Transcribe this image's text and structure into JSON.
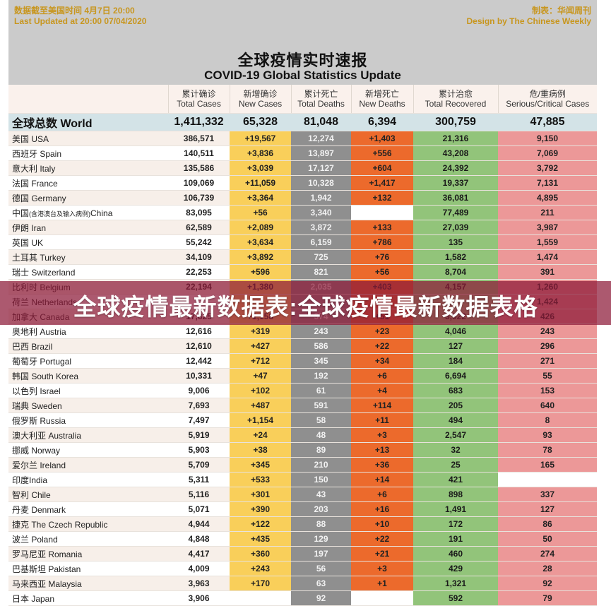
{
  "header": {
    "updated_cn": "数据截至美国时间 4月7日 20:00",
    "updated_en": "Last Updated at 20:00 07/04/2020",
    "credit_cn": "制表：华闻周刊",
    "credit_en": "Design by The Chinese Weekly",
    "title_cn": "全球疫情实时速报",
    "title_en": "COVID-19 Global Statistics Update"
  },
  "columns": [
    {
      "cn": "",
      "en": ""
    },
    {
      "cn": "累计确诊",
      "en": "Total Cases"
    },
    {
      "cn": "新增确诊",
      "en": "New Cases"
    },
    {
      "cn": "累计死亡",
      "en": "Total Deaths"
    },
    {
      "cn": "新增死亡",
      "en": "New Deaths"
    },
    {
      "cn": "累计治愈",
      "en": "Total Recovered"
    },
    {
      "cn": "危/重病例",
      "en": "Serious/Critical Cases"
    }
  ],
  "world": {
    "name": "全球总数 World",
    "total": "1,411,332",
    "new": "65,328",
    "deaths": "81,048",
    "new_deaths": "6,394",
    "recovered": "300,759",
    "serious": "47,885"
  },
  "rows": [
    {
      "name": "美国 USA",
      "total": "386,571",
      "new": "+19,567",
      "deaths": "12,274",
      "new_deaths": "+1,403",
      "recovered": "21,316",
      "serious": "9,150"
    },
    {
      "name": "西班牙 Spain",
      "total": "140,511",
      "new": "+3,836",
      "deaths": "13,897",
      "new_deaths": "+556",
      "recovered": "43,208",
      "serious": "7,069"
    },
    {
      "name": "意大利 Italy",
      "total": "135,586",
      "new": "+3,039",
      "deaths": "17,127",
      "new_deaths": "+604",
      "recovered": "24,392",
      "serious": "3,792"
    },
    {
      "name": "法国 France",
      "total": "109,069",
      "new": "+11,059",
      "deaths": "10,328",
      "new_deaths": "+1,417",
      "recovered": "19,337",
      "serious": "7,131"
    },
    {
      "name": "德国 Germany",
      "total": "106,739",
      "new": "+3,364",
      "deaths": "1,942",
      "new_deaths": "+132",
      "recovered": "36,081",
      "serious": "4,895"
    },
    {
      "name": "中国",
      "name_sub": "(含港澳台及输入病例)",
      "name_en": "China",
      "total": "83,095",
      "new": "+56",
      "deaths": "3,340",
      "new_deaths": "",
      "recovered": "77,489",
      "serious": "211"
    },
    {
      "name": "伊朗 Iran",
      "total": "62,589",
      "new": "+2,089",
      "deaths": "3,872",
      "new_deaths": "+133",
      "recovered": "27,039",
      "serious": "3,987"
    },
    {
      "name": "英国 UK",
      "total": "55,242",
      "new": "+3,634",
      "deaths": "6,159",
      "new_deaths": "+786",
      "recovered": "135",
      "serious": "1,559"
    },
    {
      "name": "土耳其 Turkey",
      "total": "34,109",
      "new": "+3,892",
      "deaths": "725",
      "new_deaths": "+76",
      "recovered": "1,582",
      "serious": "1,474"
    },
    {
      "name": "瑞士 Switzerland",
      "total": "22,253",
      "new": "+596",
      "deaths": "821",
      "new_deaths": "+56",
      "recovered": "8,704",
      "serious": "391"
    },
    {
      "name": "比利时 Belgium",
      "total": "22,194",
      "new": "+1,380",
      "deaths": "2,035",
      "new_deaths": "+403",
      "recovered": "4,157",
      "serious": "1,260"
    },
    {
      "name": "荷兰 Netherlands",
      "total": "",
      "new": "",
      "deaths": "",
      "new_deaths": "",
      "recovered": "",
      "serious": "1,424"
    },
    {
      "name": "加拿大 Canada",
      "total": "17,825",
      "new": "+1,158",
      "deaths": "374",
      "new_deaths": "+51",
      "recovered": "3,922",
      "serious": "426"
    },
    {
      "name": "奥地利 Austria",
      "total": "12,616",
      "new": "+319",
      "deaths": "243",
      "new_deaths": "+23",
      "recovered": "4,046",
      "serious": "243"
    },
    {
      "name": "巴西 Brazil",
      "total": "12,610",
      "new": "+427",
      "deaths": "586",
      "new_deaths": "+22",
      "recovered": "127",
      "serious": "296"
    },
    {
      "name": "葡萄牙 Portugal",
      "total": "12,442",
      "new": "+712",
      "deaths": "345",
      "new_deaths": "+34",
      "recovered": "184",
      "serious": "271"
    },
    {
      "name": "韩国 South Korea",
      "total": "10,331",
      "new": "+47",
      "deaths": "192",
      "new_deaths": "+6",
      "recovered": "6,694",
      "serious": "55"
    },
    {
      "name": "以色列 Israel",
      "total": "9,006",
      "new": "+102",
      "deaths": "61",
      "new_deaths": "+4",
      "recovered": "683",
      "serious": "153"
    },
    {
      "name": "瑞典 Sweden",
      "total": "7,693",
      "new": "+487",
      "deaths": "591",
      "new_deaths": "+114",
      "recovered": "205",
      "serious": "640"
    },
    {
      "name": "俄罗斯 Russia",
      "total": "7,497",
      "new": "+1,154",
      "deaths": "58",
      "new_deaths": "+11",
      "recovered": "494",
      "serious": "8"
    },
    {
      "name": "澳大利亚 Australia",
      "total": "5,919",
      "new": "+24",
      "deaths": "48",
      "new_deaths": "+3",
      "recovered": "2,547",
      "serious": "93"
    },
    {
      "name": "挪威 Norway",
      "total": "5,903",
      "new": "+38",
      "deaths": "89",
      "new_deaths": "+13",
      "recovered": "32",
      "serious": "78"
    },
    {
      "name": "爱尔兰 Ireland",
      "total": "5,709",
      "new": "+345",
      "deaths": "210",
      "new_deaths": "+36",
      "recovered": "25",
      "serious": "165"
    },
    {
      "name": "印度India",
      "total": "5,311",
      "new": "+533",
      "deaths": "150",
      "new_deaths": "+14",
      "recovered": "421",
      "serious": ""
    },
    {
      "name": "智利 Chile",
      "total": "5,116",
      "new": "+301",
      "deaths": "43",
      "new_deaths": "+6",
      "recovered": "898",
      "serious": "337"
    },
    {
      "name": "丹麦 Denmark",
      "total": "5,071",
      "new": "+390",
      "deaths": "203",
      "new_deaths": "+16",
      "recovered": "1,491",
      "serious": "127"
    },
    {
      "name": "捷克 The Czech Republic",
      "total": "4,944",
      "new": "+122",
      "deaths": "88",
      "new_deaths": "+10",
      "recovered": "172",
      "serious": "86"
    },
    {
      "name": "波兰 Poland",
      "total": "4,848",
      "new": "+435",
      "deaths": "129",
      "new_deaths": "+22",
      "recovered": "191",
      "serious": "50"
    },
    {
      "name": "罗马尼亚 Romania",
      "total": "4,417",
      "new": "+360",
      "deaths": "197",
      "new_deaths": "+21",
      "recovered": "460",
      "serious": "274"
    },
    {
      "name": "巴基斯坦 Pakistan",
      "total": "4,009",
      "new": "+243",
      "deaths": "56",
      "new_deaths": "+3",
      "recovered": "429",
      "serious": "28"
    },
    {
      "name": "马来西亚 Malaysia",
      "total": "3,963",
      "new": "+170",
      "deaths": "63",
      "new_deaths": "+1",
      "recovered": "1,321",
      "serious": "92"
    },
    {
      "name": "日本 Japan",
      "total": "3,906",
      "new": "",
      "deaths": "92",
      "new_deaths": "",
      "recovered": "592",
      "serious": "79"
    }
  ],
  "overlay": {
    "text": "全球疫情最新数据表:全球疫情最新数据表格"
  },
  "colors": {
    "header_panel": "#cbcbcb",
    "meta_text": "#c8961e",
    "world_row": "#d3e3e7",
    "new_cases": "#f9cf5a",
    "total_deaths": "#8f8f8f",
    "new_deaths": "#ec6a2c",
    "recovered": "#92c47a",
    "serious": "#ec9898",
    "overlay": "#8c1937"
  }
}
